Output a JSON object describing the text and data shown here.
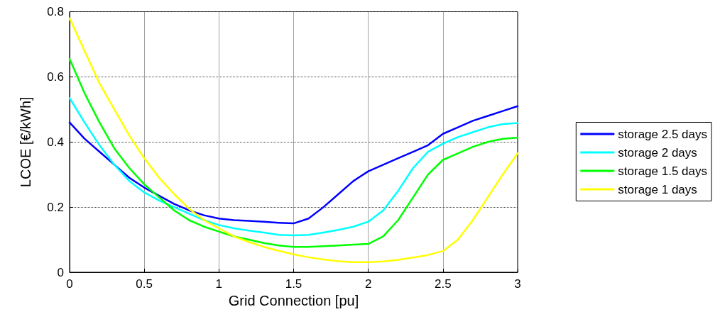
{
  "chart_data": {
    "type": "line",
    "xlabel": "Grid Connection [pu]",
    "ylabel": "LCOE [€/kWh]",
    "x": [
      0,
      0.1,
      0.2,
      0.3,
      0.4,
      0.5,
      0.6,
      0.7,
      0.8,
      0.9,
      1,
      1.1,
      1.2,
      1.3,
      1.4,
      1.5,
      1.6,
      1.7,
      1.8,
      1.9,
      2,
      2.1,
      2.2,
      2.3,
      2.4,
      2.5,
      2.6,
      2.7,
      2.8,
      2.9,
      3
    ],
    "series": [
      {
        "name": "storage 2.5 days",
        "color": "#0000ff",
        "values": [
          0.46,
          0.41,
          0.37,
          0.33,
          0.29,
          0.26,
          0.235,
          0.21,
          0.19,
          0.175,
          0.165,
          0.16,
          0.158,
          0.155,
          0.152,
          0.15,
          0.165,
          0.2,
          0.24,
          0.28,
          0.31,
          0.33,
          0.35,
          0.37,
          0.39,
          0.425,
          0.445,
          0.465,
          0.48,
          0.495,
          0.51
        ]
      },
      {
        "name": "storage 2 days",
        "color": "#00ffff",
        "values": [
          0.535,
          0.46,
          0.39,
          0.33,
          0.28,
          0.245,
          0.22,
          0.2,
          0.18,
          0.16,
          0.145,
          0.135,
          0.128,
          0.122,
          0.115,
          0.113,
          0.115,
          0.122,
          0.13,
          0.14,
          0.155,
          0.19,
          0.25,
          0.32,
          0.37,
          0.395,
          0.415,
          0.43,
          0.445,
          0.455,
          0.458
        ]
      },
      {
        "name": "storage 1.5 days",
        "color": "#00ff00",
        "values": [
          0.655,
          0.55,
          0.46,
          0.38,
          0.32,
          0.27,
          0.23,
          0.19,
          0.16,
          0.14,
          0.125,
          0.11,
          0.1,
          0.09,
          0.082,
          0.078,
          0.078,
          0.08,
          0.082,
          0.085,
          0.087,
          0.11,
          0.16,
          0.23,
          0.3,
          0.345,
          0.365,
          0.385,
          0.4,
          0.41,
          0.413
        ]
      },
      {
        "name": "storage 1 days",
        "color": "#ffff00",
        "values": [
          0.78,
          0.68,
          0.58,
          0.5,
          0.42,
          0.35,
          0.29,
          0.24,
          0.195,
          0.16,
          0.135,
          0.11,
          0.093,
          0.078,
          0.066,
          0.055,
          0.046,
          0.039,
          0.034,
          0.031,
          0.031,
          0.033,
          0.038,
          0.045,
          0.053,
          0.065,
          0.1,
          0.16,
          0.23,
          0.3,
          0.365
        ]
      }
    ],
    "xlim": [
      0,
      3
    ],
    "xticks": [
      0,
      0.5,
      1,
      1.5,
      2,
      2.5,
      3
    ],
    "ylim": [
      0,
      0.8
    ],
    "yticks": [
      0,
      0.2,
      0.4,
      0.6,
      0.8
    ],
    "grid": true,
    "legend": "right",
    "line_style": "solid",
    "marker": "none"
  }
}
